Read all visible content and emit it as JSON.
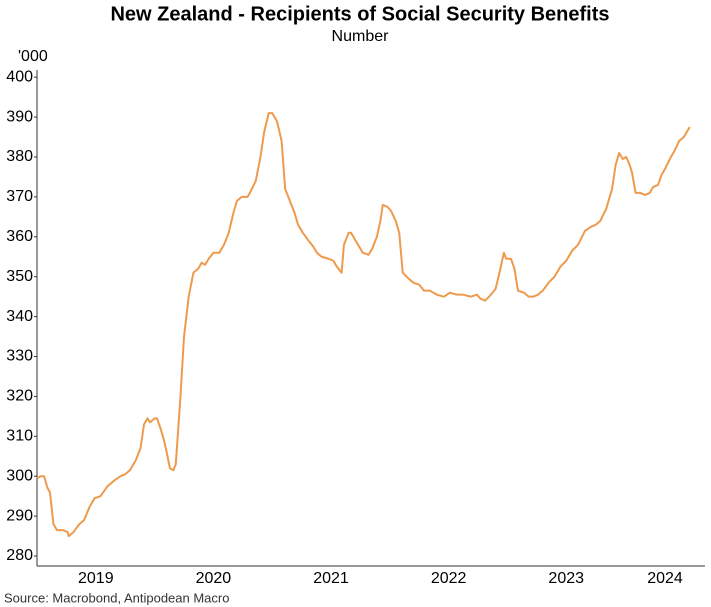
{
  "chart_data": {
    "type": "line",
    "title": "New Zealand - Recipients of Social Security Benefits",
    "subtitle": "Number",
    "y_unit": "'000",
    "source": "Source: Macrobond, Antipodean Macro",
    "xlim": [
      2019,
      2024.68
    ],
    "xticks": [
      {
        "value": 2019.5,
        "label": "2019"
      },
      {
        "value": 2020.5,
        "label": "2020"
      },
      {
        "value": 2021.5,
        "label": "2021"
      },
      {
        "value": 2022.5,
        "label": "2022"
      },
      {
        "value": 2023.5,
        "label": "2023"
      },
      {
        "value": 2024.34,
        "label": "2024"
      }
    ],
    "ylim": [
      277.5,
      401.8
    ],
    "yticks": [
      280,
      290,
      300,
      310,
      320,
      330,
      340,
      350,
      360,
      370,
      380,
      390,
      400
    ],
    "grid": false,
    "x": [
      2019.0,
      2019.03,
      2019.06,
      2019.09,
      2019.11,
      2019.14,
      2019.17,
      2019.22,
      2019.26,
      2019.27,
      2019.31,
      2019.36,
      2019.4,
      2019.45,
      2019.49,
      2019.54,
      2019.6,
      2019.66,
      2019.71,
      2019.75,
      2019.79,
      2019.84,
      2019.88,
      2019.91,
      2019.94,
      2019.96,
      2020.0,
      2020.02,
      2020.05,
      2020.08,
      2020.11,
      2020.13,
      2020.16,
      2020.18,
      2020.22,
      2020.25,
      2020.29,
      2020.33,
      2020.37,
      2020.4,
      2020.43,
      2020.46,
      2020.5,
      2020.55,
      2020.59,
      2020.63,
      2020.67,
      2020.7,
      2020.74,
      2020.79,
      2020.81,
      2020.86,
      2020.9,
      2020.93,
      2020.97,
      2021.0,
      2021.04,
      2021.08,
      2021.11,
      2021.15,
      2021.19,
      2021.22,
      2021.26,
      2021.31,
      2021.35,
      2021.38,
      2021.42,
      2021.48,
      2021.52,
      2021.55,
      2021.59,
      2021.61,
      2021.65,
      2021.67,
      2021.71,
      2021.74,
      2021.77,
      2021.82,
      2021.85,
      2021.89,
      2021.92,
      2021.94,
      2021.98,
      2022.01,
      2022.05,
      2022.08,
      2022.11,
      2022.16,
      2022.2,
      2022.25,
      2022.29,
      2022.34,
      2022.4,
      2022.46,
      2022.51,
      2022.57,
      2022.62,
      2022.69,
      2022.74,
      2022.77,
      2022.81,
      2022.86,
      2022.9,
      2022.94,
      2022.97,
      2022.99,
      2023.03,
      2023.06,
      2023.09,
      2023.14,
      2023.18,
      2023.22,
      2023.26,
      2023.3,
      2023.35,
      2023.4,
      2023.45,
      2023.5,
      2023.55,
      2023.6,
      2023.66,
      2023.71,
      2023.75,
      2023.79,
      2023.84,
      2023.89,
      2023.92,
      2023.95,
      2023.98,
      2024.01,
      2024.04,
      2024.06,
      2024.09,
      2024.13,
      2024.17,
      2024.21,
      2024.24,
      2024.28,
      2024.31,
      2024.34,
      2024.39,
      2024.42,
      2024.46,
      2024.5,
      2024.52,
      2024.55
    ],
    "series": [
      {
        "color": "#ee9a4d",
        "values": [
          299.5,
          300,
          300,
          297,
          296,
          288,
          286.5,
          286.5,
          286,
          285,
          286,
          288,
          289,
          292.5,
          294.5,
          295,
          297.5,
          299,
          300,
          300.5,
          301.5,
          304,
          307,
          313,
          314.5,
          313.5,
          314.5,
          314.5,
          312,
          309,
          305,
          302,
          301.5,
          303,
          320,
          335,
          345,
          351,
          352,
          353.5,
          353,
          354.5,
          356,
          356,
          358,
          361,
          366,
          369,
          370,
          370,
          371,
          374,
          380,
          386,
          391,
          391,
          389,
          384,
          372,
          369,
          366,
          363,
          361,
          359,
          357.5,
          356,
          355,
          354.5,
          354,
          352.5,
          351,
          358,
          361,
          361,
          359,
          357.5,
          356,
          355.5,
          357,
          360,
          364,
          368,
          367.5,
          366.5,
          364,
          361,
          351,
          349.5,
          348.5,
          348,
          346.5,
          346.5,
          345.5,
          345,
          346,
          345.5,
          345.5,
          345,
          345.5,
          344.5,
          344,
          345.5,
          347,
          352,
          356,
          354.5,
          354.5,
          352,
          346.5,
          346,
          345,
          345,
          345.5,
          346.5,
          348.5,
          350,
          352.5,
          354,
          356.5,
          358,
          361.5,
          362.5,
          363,
          364,
          367,
          372,
          378,
          381,
          379.5,
          380,
          378,
          376,
          371,
          371,
          370.5,
          371,
          372.5,
          373,
          375.5,
          377,
          380,
          381.5,
          384,
          385,
          386,
          387.5
        ]
      }
    ]
  }
}
